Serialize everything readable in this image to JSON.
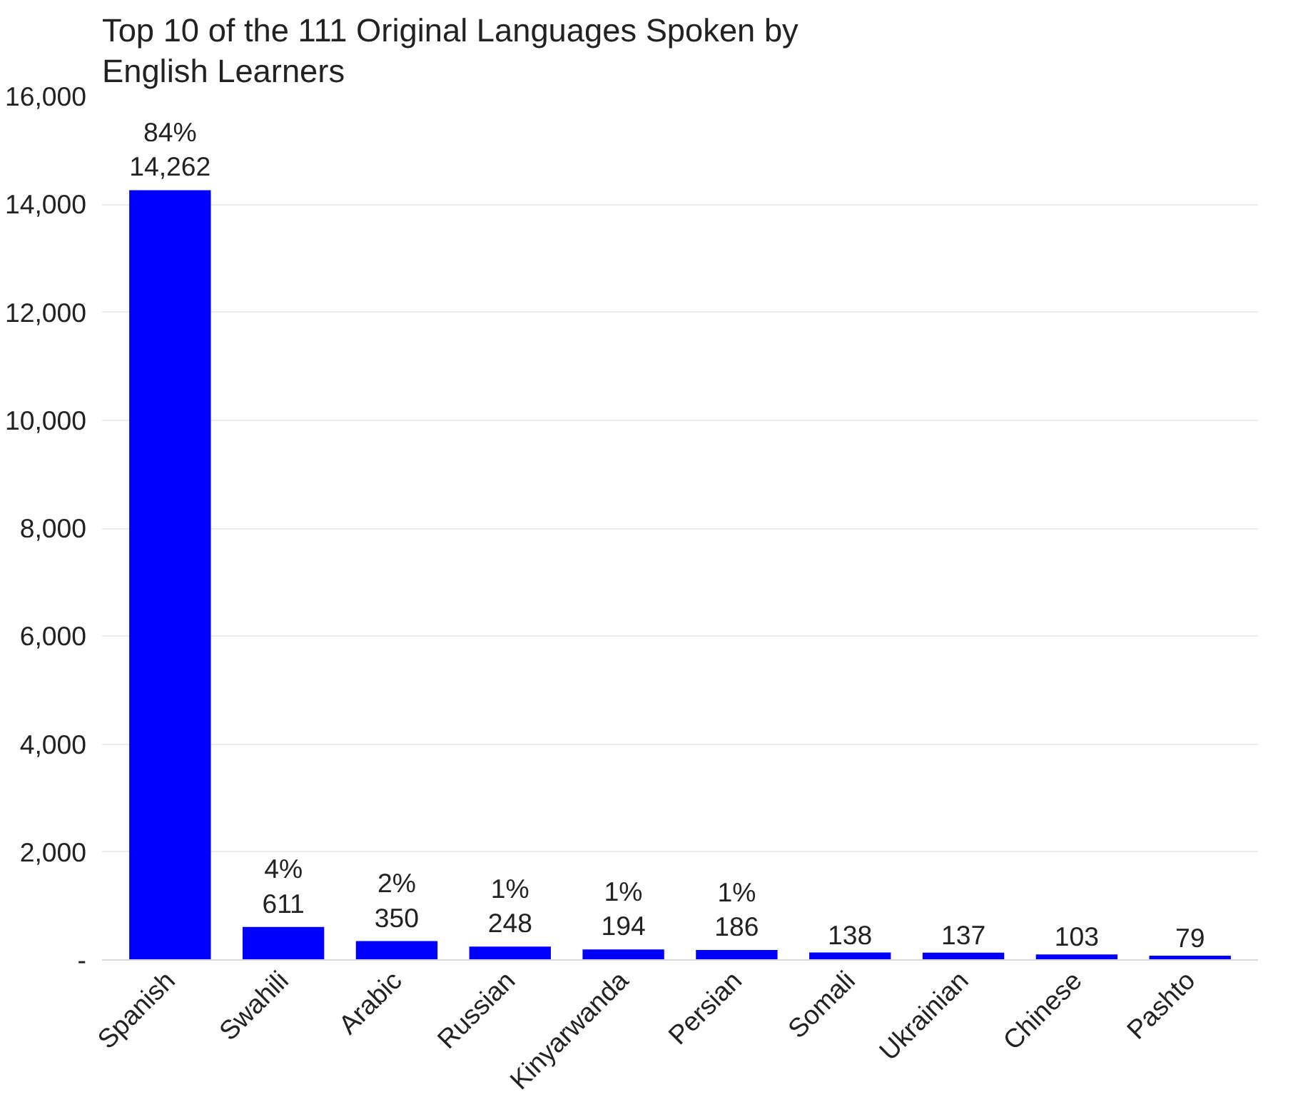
{
  "chart_data": {
    "type": "bar",
    "title": "Top 10 of the 111 Original Languages Spoken by English Learners",
    "categories": [
      "Spanish",
      "Swahili",
      "Arabic",
      "Russian",
      "Kinyarwanda",
      "Persian",
      "Somali",
      "Ukrainian",
      "Chinese",
      "Pashto"
    ],
    "values": [
      14262,
      611,
      350,
      248,
      194,
      186,
      138,
      137,
      103,
      79
    ],
    "value_labels": [
      "84%\n14,262",
      "4%\n611",
      "2%\n350",
      "1%\n248",
      "1%\n194",
      "1%\n186",
      "138",
      "137",
      "103",
      "79"
    ],
    "color": "#0000ff",
    "ylim": [
      0,
      16000
    ],
    "yticks": [
      {
        "value": 0,
        "label": "-"
      },
      {
        "value": 2000,
        "label": "2,000"
      },
      {
        "value": 4000,
        "label": "4,000"
      },
      {
        "value": 6000,
        "label": "6,000"
      },
      {
        "value": 8000,
        "label": "8,000"
      },
      {
        "value": 10000,
        "label": "10,000"
      },
      {
        "value": 12000,
        "label": "12,000"
      },
      {
        "value": 14000,
        "label": "14,000"
      },
      {
        "value": 16000,
        "label": "16,000"
      }
    ],
    "grid": "y"
  }
}
